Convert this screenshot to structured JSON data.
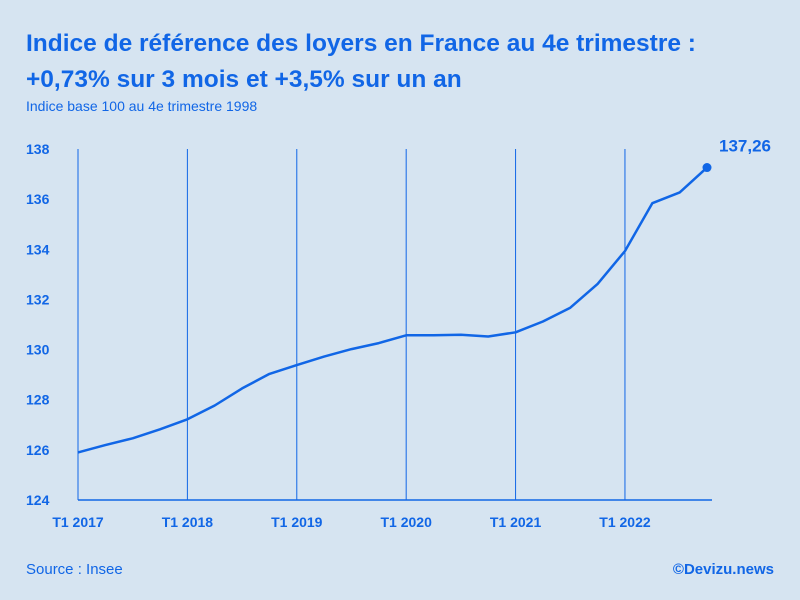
{
  "header": {
    "title_line1": "Indice de référence des loyers en France au 4e trimestre :",
    "title_line2": "+0,73% sur 3 mois et +3,5% sur un an",
    "subtitle": "Indice base 100 au 4e trimestre 1998"
  },
  "footer": {
    "source": "Source : Insee",
    "credit": "©Devizu.news"
  },
  "colors": {
    "accent": "#1166e6",
    "background": "#d6e4f1"
  },
  "chart_data": {
    "type": "line",
    "title": "",
    "xlabel": "",
    "ylabel": "",
    "ylim": [
      124,
      138
    ],
    "yticks": [
      124,
      126,
      128,
      130,
      132,
      134,
      136,
      138
    ],
    "xticks": [
      "T1 2017",
      "T1 2018",
      "T1 2019",
      "T1 2020",
      "T1 2021",
      "T1 2022"
    ],
    "grid": "vertical",
    "categories": [
      "T1 2017",
      "T2 2017",
      "T3 2017",
      "T4 2017",
      "T1 2018",
      "T2 2018",
      "T3 2018",
      "T4 2018",
      "T1 2019",
      "T2 2019",
      "T3 2019",
      "T4 2019",
      "T1 2020",
      "T2 2020",
      "T3 2020",
      "T4 2020",
      "T1 2021",
      "T2 2021",
      "T3 2021",
      "T4 2021",
      "T1 2022",
      "T2 2022",
      "T3 2022",
      "T4 2022"
    ],
    "series": [
      {
        "values": [
          125.9,
          126.19,
          126.46,
          126.82,
          127.22,
          127.77,
          128.45,
          129.03,
          129.38,
          129.72,
          130.02,
          130.26,
          130.57,
          130.57,
          130.59,
          130.52,
          130.69,
          131.12,
          131.67,
          132.62,
          133.93,
          135.84,
          136.27,
          137.26
        ]
      }
    ],
    "end_label": "137,26"
  }
}
